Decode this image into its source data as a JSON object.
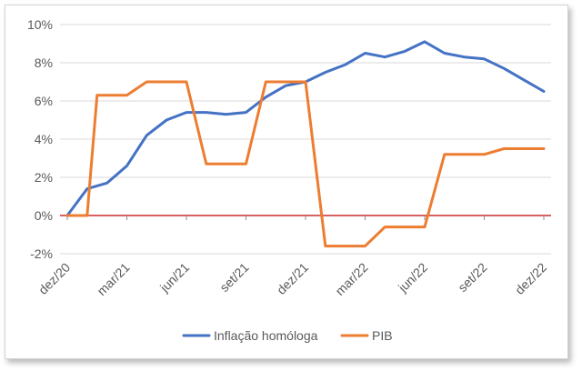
{
  "chart_data": {
    "type": "line",
    "categories": [
      "dez/20",
      "jan/21",
      "fev/21",
      "mar/21",
      "abr/21",
      "mai/21",
      "jun/21",
      "jul/21",
      "ago/21",
      "set/21",
      "out/21",
      "nov/21",
      "dez/21",
      "jan/22",
      "fev/22",
      "mar/22",
      "abr/22",
      "mai/22",
      "jun/22",
      "jul/22",
      "ago/22",
      "set/22",
      "out/22",
      "nov/22",
      "dez/22"
    ],
    "x_tick_labels": [
      "dez/20",
      "mar/21",
      "jun/21",
      "set/21",
      "dez/21",
      "mar/22",
      "jun/22",
      "set/22",
      "dez/22"
    ],
    "y_tick_labels": [
      "-2%",
      "0%",
      "2%",
      "4%",
      "6%",
      "8%",
      "10%"
    ],
    "ylim": [
      -2,
      10
    ],
    "y_step": 2,
    "grid": "horizontal",
    "zero_line_color": "#c00000",
    "legend_position": "bottom",
    "series": [
      {
        "name": "Inflação homóloga",
        "color": "#4472c4",
        "values": [
          0.0,
          1.4,
          1.7,
          2.6,
          4.2,
          5.0,
          5.4,
          5.4,
          5.3,
          5.4,
          6.2,
          6.8,
          7.0,
          7.5,
          7.9,
          8.5,
          8.3,
          8.6,
          9.1,
          8.5,
          8.3,
          8.2,
          7.7,
          7.1,
          6.5
        ]
      },
      {
        "name": "PIB",
        "color": "#ed7d31",
        "points": [
          [
            0,
            0.0
          ],
          [
            1,
            0.0
          ],
          [
            1.5,
            6.3
          ],
          [
            3,
            6.3
          ],
          [
            4,
            7.0
          ],
          [
            6,
            7.0
          ],
          [
            7,
            2.7
          ],
          [
            9,
            2.7
          ],
          [
            10,
            7.0
          ],
          [
            12,
            7.0
          ],
          [
            13,
            -1.6
          ],
          [
            15,
            -1.6
          ],
          [
            16,
            -0.6
          ],
          [
            18,
            -0.6
          ],
          [
            19,
            3.2
          ],
          [
            21,
            3.2
          ],
          [
            22,
            3.5
          ],
          [
            24,
            3.5
          ]
        ]
      }
    ]
  }
}
